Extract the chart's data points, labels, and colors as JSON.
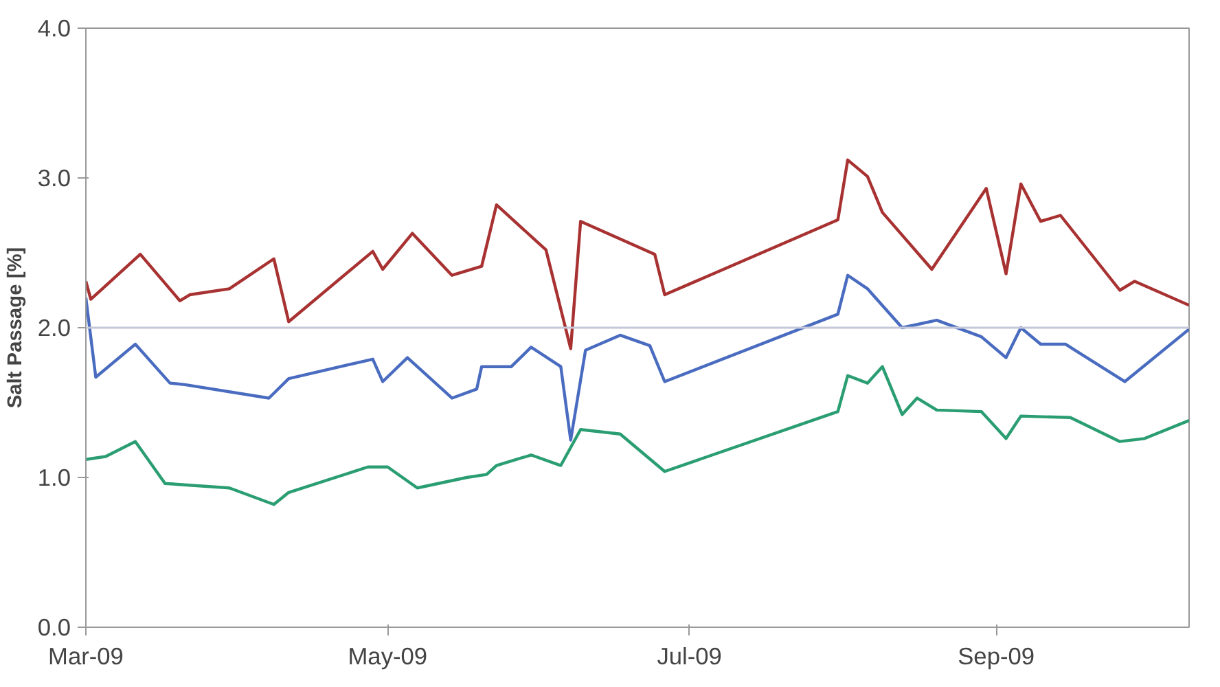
{
  "chart_data": {
    "type": "line",
    "ylabel": "Salt Passage [%]",
    "xlim": [
      "2009-03-01",
      "2009-10-10"
    ],
    "xticks": [
      {
        "value": "2009-03-01",
        "label": "Mar-09"
      },
      {
        "value": "2009-05-01",
        "label": "May-09"
      },
      {
        "value": "2009-07-01",
        "label": "Jul-09"
      },
      {
        "value": "2009-09-01",
        "label": "Sep-09"
      }
    ],
    "ylim": [
      0,
      4
    ],
    "yticks": [
      {
        "value": 0,
        "label": "0.0"
      },
      {
        "value": 1,
        "label": "1.0"
      },
      {
        "value": 2,
        "label": "2.0"
      },
      {
        "value": 3,
        "label": "3.0"
      },
      {
        "value": 4,
        "label": "4.0"
      }
    ],
    "grid": false,
    "marker": "none",
    "line_style": "solid",
    "ref_lines": [
      {
        "axis": "y",
        "value": 2.0,
        "label": null,
        "color": "#c4c8d8"
      }
    ],
    "series": [
      {
        "color": "#a83232",
        "x": [
          "2009-03-01",
          "2009-03-02",
          "2009-03-12",
          "2009-03-20",
          "2009-03-22",
          "2009-03-30",
          "2009-04-08",
          "2009-04-11",
          "2009-04-28",
          "2009-04-30",
          "2009-05-06",
          "2009-05-14",
          "2009-05-20",
          "2009-05-23",
          "2009-05-31",
          "2009-06-02",
          "2009-06-07",
          "2009-06-09",
          "2009-06-24",
          "2009-06-26",
          "2009-07-31",
          "2009-08-02",
          "2009-08-06",
          "2009-08-09",
          "2009-08-19",
          "2009-08-30",
          "2009-09-03",
          "2009-09-06",
          "2009-09-10",
          "2009-09-14",
          "2009-09-26",
          "2009-09-29",
          "2009-10-10"
        ],
        "values": [
          2.31,
          2.19,
          2.49,
          2.18,
          2.22,
          2.26,
          2.46,
          2.04,
          2.51,
          2.39,
          2.63,
          2.35,
          2.41,
          2.82,
          2.58,
          2.52,
          1.86,
          2.71,
          2.49,
          2.22,
          2.72,
          3.12,
          3.01,
          2.77,
          2.39,
          2.93,
          2.36,
          2.96,
          2.71,
          2.75,
          2.25,
          2.31,
          2.15
        ]
      },
      {
        "color": "#4a6cc0",
        "x": [
          "2009-03-01",
          "2009-03-03",
          "2009-03-11",
          "2009-03-18",
          "2009-03-21",
          "2009-04-07",
          "2009-04-11",
          "2009-04-28",
          "2009-04-30",
          "2009-05-05",
          "2009-05-14",
          "2009-05-19",
          "2009-05-20",
          "2009-05-26",
          "2009-05-30",
          "2009-06-05",
          "2009-06-07",
          "2009-06-10",
          "2009-06-17",
          "2009-06-23",
          "2009-06-26",
          "2009-07-31",
          "2009-08-02",
          "2009-08-06",
          "2009-08-13",
          "2009-08-20",
          "2009-08-29",
          "2009-09-03",
          "2009-09-06",
          "2009-09-10",
          "2009-09-15",
          "2009-09-27",
          "2009-10-10"
        ],
        "values": [
          2.2,
          1.67,
          1.89,
          1.63,
          1.62,
          1.53,
          1.66,
          1.79,
          1.64,
          1.8,
          1.53,
          1.59,
          1.74,
          1.74,
          1.87,
          1.74,
          1.25,
          1.85,
          1.95,
          1.88,
          1.64,
          2.09,
          2.35,
          2.26,
          2.0,
          2.05,
          1.94,
          1.8,
          2.0,
          1.89,
          1.89,
          1.64,
          1.99
        ]
      },
      {
        "color": "#2a9e72",
        "x": [
          "2009-03-01",
          "2009-03-05",
          "2009-03-11",
          "2009-03-17",
          "2009-03-30",
          "2009-04-08",
          "2009-04-11",
          "2009-04-27",
          "2009-05-01",
          "2009-05-07",
          "2009-05-17",
          "2009-05-21",
          "2009-05-23",
          "2009-05-30",
          "2009-06-05",
          "2009-06-09",
          "2009-06-17",
          "2009-06-26",
          "2009-07-31",
          "2009-08-02",
          "2009-08-06",
          "2009-08-09",
          "2009-08-13",
          "2009-08-16",
          "2009-08-20",
          "2009-08-29",
          "2009-09-03",
          "2009-09-06",
          "2009-09-16",
          "2009-09-26",
          "2009-10-01",
          "2009-10-10"
        ],
        "values": [
          1.12,
          1.14,
          1.24,
          0.96,
          0.93,
          0.82,
          0.9,
          1.07,
          1.07,
          0.93,
          1.0,
          1.02,
          1.08,
          1.15,
          1.08,
          1.32,
          1.29,
          1.04,
          1.44,
          1.68,
          1.63,
          1.74,
          1.42,
          1.53,
          1.45,
          1.44,
          1.26,
          1.41,
          1.4,
          1.24,
          1.26,
          1.38
        ]
      }
    ]
  }
}
